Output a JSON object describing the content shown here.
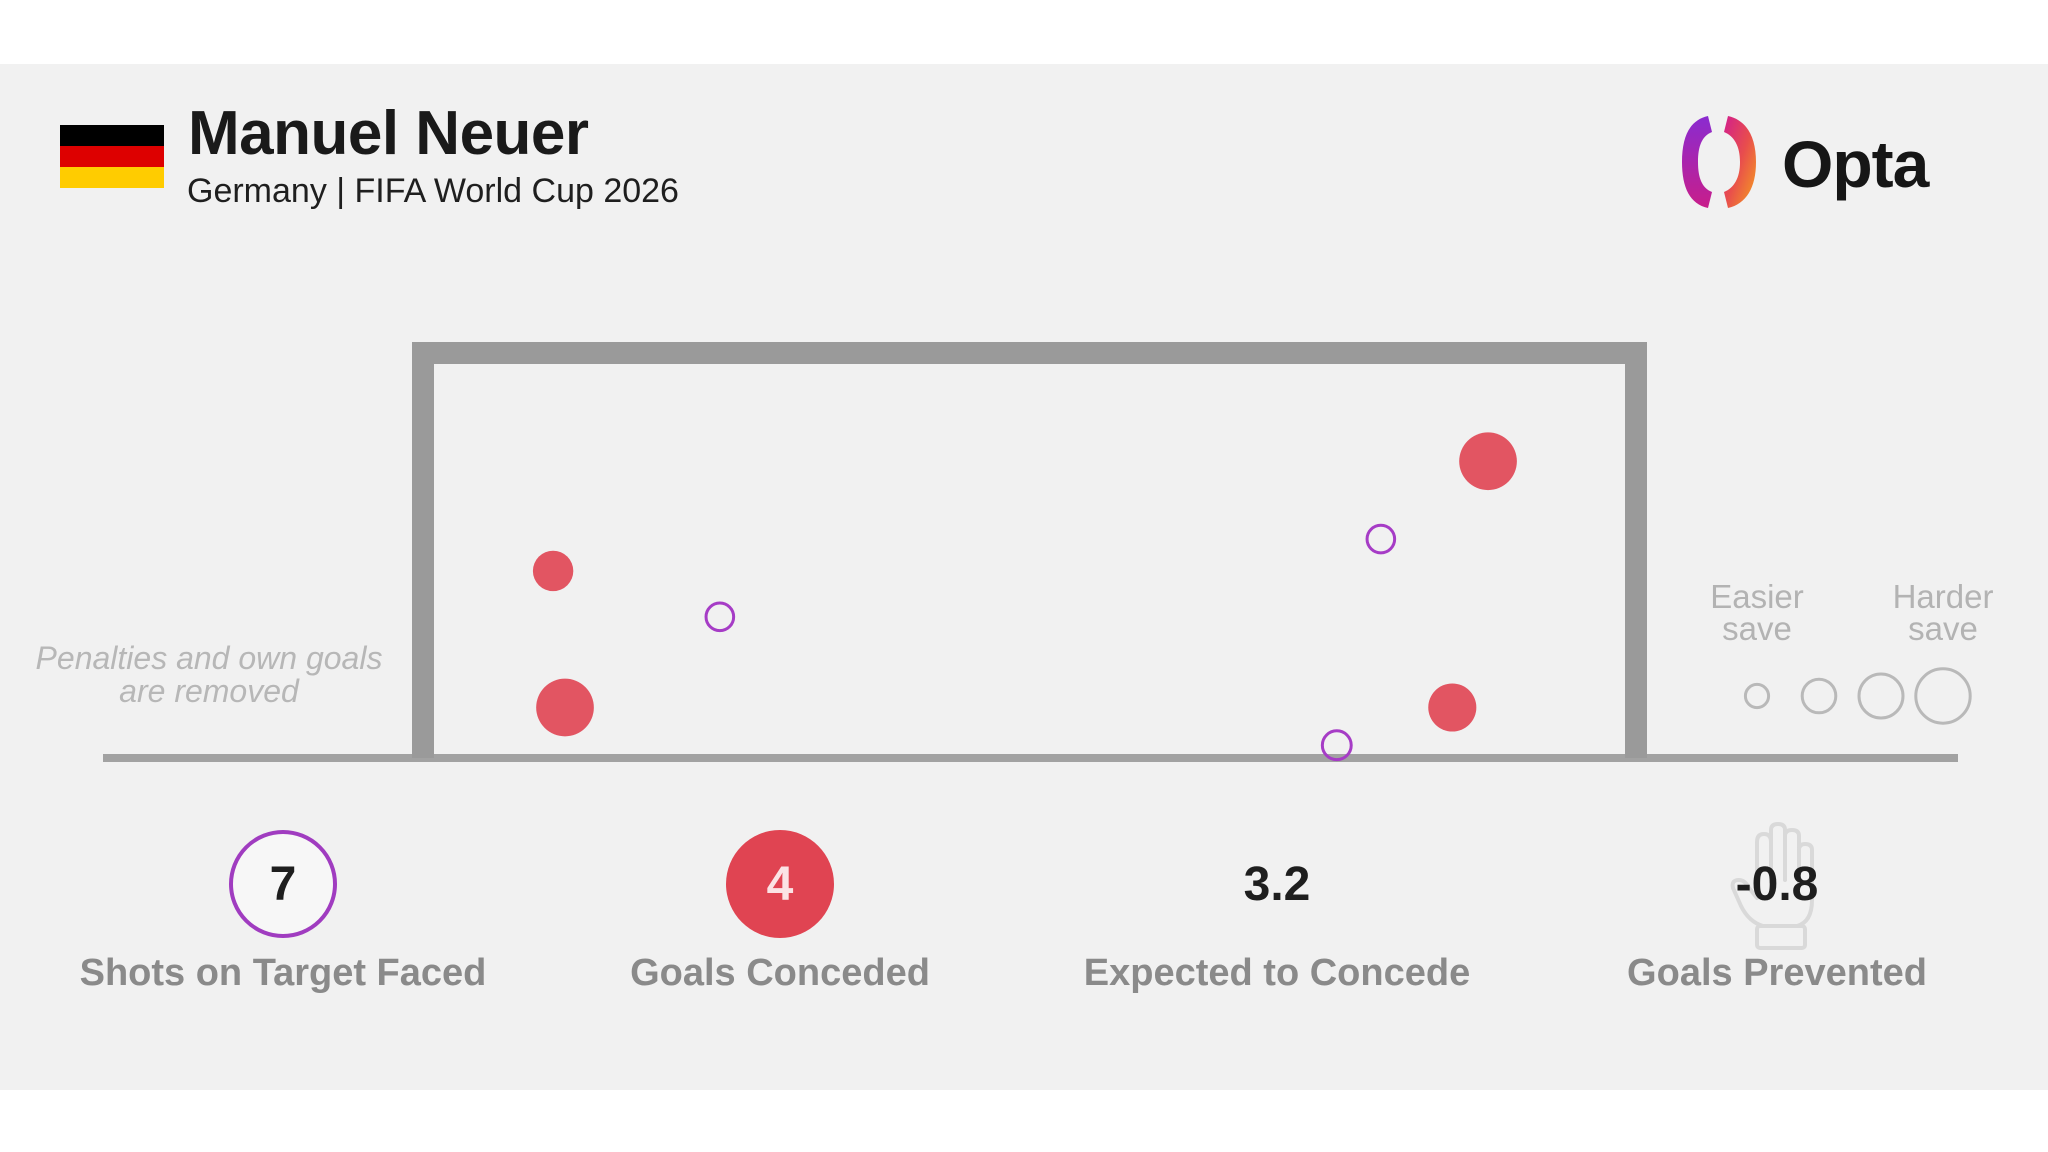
{
  "header": {
    "player_name": "Manuel Neuer",
    "subtitle": "Germany | FIFA World Cup 2026",
    "flag_colors": [
      "#000000",
      "#dd0000",
      "#ffcc00"
    ],
    "brand_name": "Opta"
  },
  "notes": {
    "removed_line1": "Penalties and own goals",
    "removed_line2": "are removed"
  },
  "legend": {
    "easier_line1": "Easier",
    "easier_line2": "save",
    "harder_line1": "Harder",
    "harder_line2": "save",
    "marker_scale": [
      0.1,
      0.3,
      0.5,
      0.7
    ]
  },
  "stats": {
    "shots_value": "7",
    "shots_label": "Shots on Target Faced",
    "goals_value": "4",
    "goals_label": "Goals Conceded",
    "expected_value": "3.2",
    "expected_label": "Expected to Concede",
    "prevented_value": "-0.8",
    "prevented_label": "Goals Prevented"
  },
  "colors": {
    "goal": "#e04452",
    "save": "#a63cc6",
    "frame": "#9a9a9a",
    "ground": "#a2a2a2"
  },
  "chart_data": {
    "type": "scatter",
    "description_units": "x: 0 = left post, 1 = right post; y: 0 = goal line, 1 = crossbar; size: relative save difficulty 0-1",
    "points": [
      {
        "x": 0.1,
        "y": 0.468,
        "size": 0.35,
        "outcome": "goal"
      },
      {
        "x": 0.11,
        "y": 0.117,
        "size": 0.62,
        "outcome": "goal"
      },
      {
        "x": 0.24,
        "y": 0.35,
        "size": 0.15,
        "outcome": "saved"
      },
      {
        "x": 0.795,
        "y": 0.55,
        "size": 0.15,
        "outcome": "saved"
      },
      {
        "x": 0.758,
        "y": 0.02,
        "size": 0.17,
        "outcome": "saved"
      },
      {
        "x": 0.885,
        "y": 0.75,
        "size": 0.62,
        "outcome": "goal"
      },
      {
        "x": 0.855,
        "y": 0.117,
        "size": 0.47,
        "outcome": "goal"
      }
    ]
  }
}
